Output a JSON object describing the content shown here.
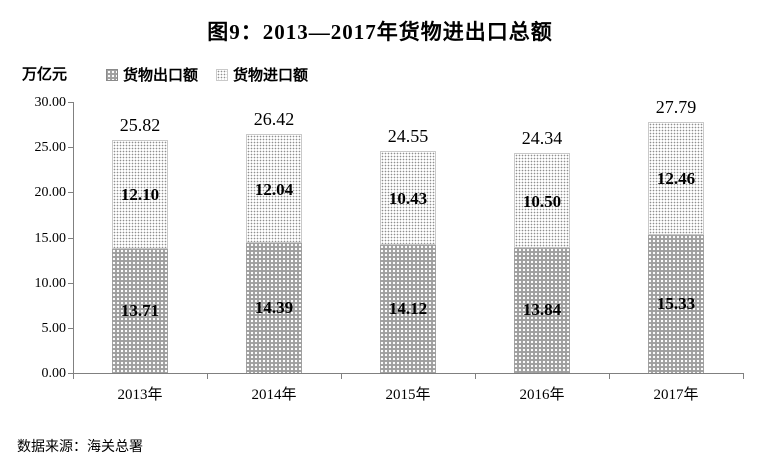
{
  "title": "图9：2013—2017年货物进出口总额",
  "unit_label": "万亿元",
  "legend": {
    "items": [
      {
        "label": "货物出口额",
        "pattern": "export"
      },
      {
        "label": "货物进口额",
        "pattern": "import"
      }
    ]
  },
  "source_note": "数据来源：海关总署",
  "colors": {
    "export_fill": "#9e9e9e",
    "export_dot": "#ffffff",
    "import_fill": "#ffffff",
    "import_dot": "#8f8f8f",
    "axis": "#808080",
    "text": "#000000"
  },
  "chart_data": {
    "type": "bar",
    "stacked": true,
    "title": "图9：2013—2017年货物进出口总额",
    "xlabel": "",
    "ylabel": "万亿元",
    "categories": [
      "2013年",
      "2014年",
      "2015年",
      "2016年",
      "2017年"
    ],
    "series": [
      {
        "name": "货物出口额",
        "values": [
          13.71,
          14.39,
          14.12,
          13.84,
          15.33
        ]
      },
      {
        "name": "货物进口额",
        "values": [
          12.1,
          12.04,
          10.43,
          10.5,
          12.46
        ]
      }
    ],
    "totals": [
      25.82,
      26.42,
      24.55,
      24.34,
      27.79
    ],
    "ylim": [
      0,
      30
    ],
    "y_ticks": [
      "30.00",
      "25.00",
      "20.00",
      "15.00",
      "10.00",
      "5.00",
      "0.00"
    ],
    "grid": false,
    "legend_position": "top-left",
    "value_labels": "inside-and-total"
  }
}
